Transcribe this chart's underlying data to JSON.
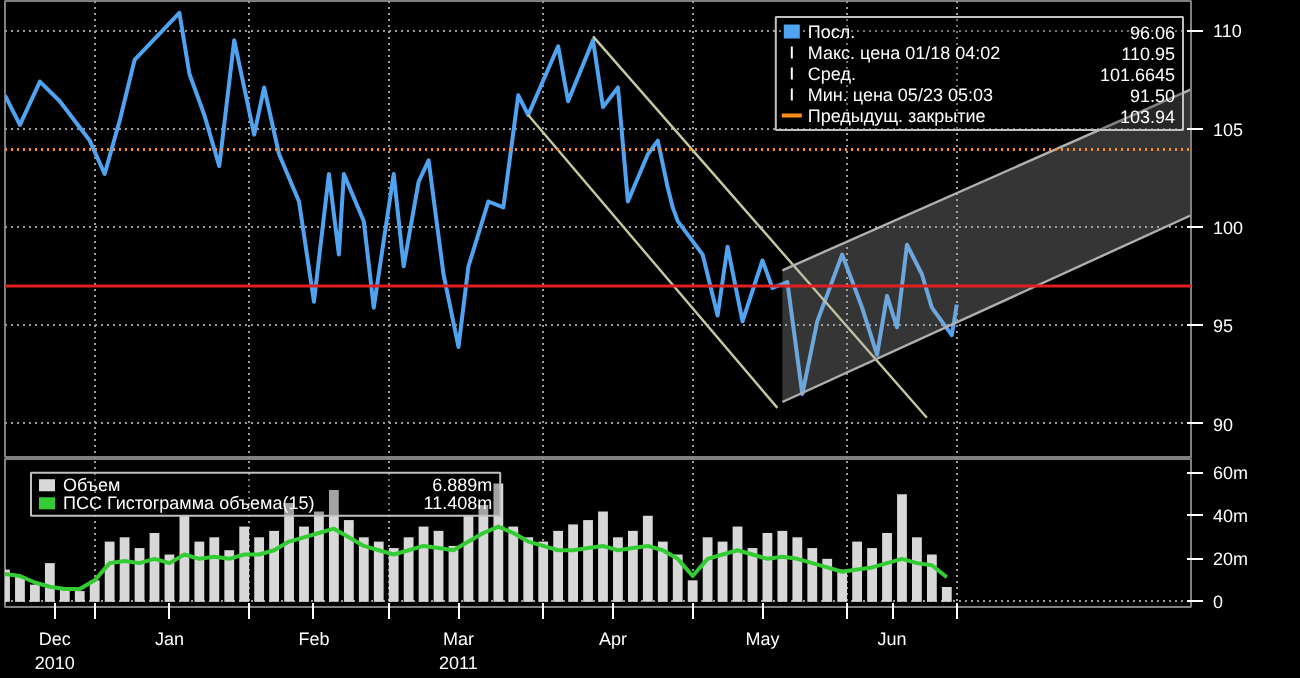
{
  "chart_data": [
    {
      "type": "line",
      "xlim": [
        "2010-12-14",
        "2011-08-09"
      ],
      "ylim": [
        88.2,
        111.5
      ],
      "xticks": [
        {
          "value": "2011-01-01",
          "label": null
        },
        {
          "value": "2011-02-01",
          "label": null
        },
        {
          "value": "2011-03-01",
          "label": null
        },
        {
          "value": "2011-04-01",
          "label": null
        },
        {
          "value": "2011-05-01",
          "label": null
        },
        {
          "value": "2011-06-01",
          "label": null
        },
        {
          "value": "2011-06-23",
          "label": null
        }
      ],
      "yticks": [
        90,
        95,
        100,
        105,
        110
      ],
      "tick_labels": "y",
      "grid": true,
      "legend": "top right",
      "x": [
        "2010-12-14",
        "2010-12-17",
        "2010-12-21",
        "2010-12-25",
        "2010-12-31",
        "2011-01-03",
        "2011-01-06",
        "2011-01-09",
        "2011-01-18",
        "2011-01-20",
        "2011-01-23",
        "2011-01-26",
        "2011-01-29",
        "2011-02-02",
        "2011-02-04",
        "2011-02-07",
        "2011-02-11",
        "2011-02-14",
        "2011-02-17",
        "2011-02-19",
        "2011-02-20",
        "2011-02-24",
        "2011-02-26",
        "2011-03-02",
        "2011-03-04",
        "2011-03-07",
        "2011-03-09",
        "2011-03-12",
        "2011-03-15",
        "2011-03-17",
        "2011-03-21",
        "2011-03-24",
        "2011-03-27",
        "2011-03-29",
        "2011-04-04",
        "2011-04-06",
        "2011-04-11",
        "2011-04-13",
        "2011-04-16",
        "2011-04-18",
        "2011-04-22",
        "2011-04-24",
        "2011-04-26",
        "2011-04-27",
        "2011-04-28",
        "2011-05-03",
        "2011-05-06",
        "2011-05-08",
        "2011-05-11",
        "2011-05-15",
        "2011-05-17",
        "2011-05-20",
        "2011-05-23",
        "2011-05-26",
        "2011-05-31",
        "2011-06-04",
        "2011-06-07",
        "2011-06-09",
        "2011-06-11",
        "2011-06-13",
        "2011-06-16",
        "2011-06-18",
        "2011-06-22",
        "2011-06-23"
      ],
      "series": [
        {
          "name": "Посл.",
          "color": "#4fa3f0",
          "values": [
            106.7,
            105.2,
            107.4,
            106.4,
            104.4,
            102.7,
            105.4,
            108.5,
            110.9,
            107.8,
            105.7,
            103.1,
            109.5,
            104.7,
            107.1,
            103.7,
            101.3,
            96.2,
            102.7,
            98.6,
            102.7,
            100.3,
            95.9,
            102.7,
            98.0,
            102.3,
            103.4,
            97.6,
            93.9,
            98.0,
            101.3,
            101.0,
            106.7,
            105.7,
            109.2,
            106.4,
            109.5,
            106.1,
            107.1,
            101.3,
            103.7,
            104.4,
            102.0,
            101.0,
            100.3,
            98.6,
            95.5,
            99.0,
            95.2,
            98.3,
            96.9,
            97.2,
            91.5,
            95.2,
            98.6,
            95.9,
            93.5,
            96.5,
            94.9,
            99.1,
            97.6,
            95.9,
            94.5,
            96.06
          ]
        },
        {
          "type": "line",
          "color": "#c8c8a0",
          "x": [
            "2011-03-29",
            "2011-05-18"
          ],
          "values": [
            105.7,
            90.8
          ]
        },
        {
          "type": "line",
          "color": "#c8c8a0",
          "x": [
            "2011-04-11",
            "2011-06-17"
          ],
          "values": [
            109.7,
            90.3
          ]
        },
        {
          "type": "line",
          "color": "#b0b0b0",
          "x": [
            "2011-05-19",
            "2011-08-09"
          ],
          "values": [
            97.8,
            107.0
          ],
          "lower": [
            91.1,
            100.6
          ],
          "upper": [
            97.8,
            107.0
          ]
        },
        {
          "type": "line",
          "color": "#b0b0b0",
          "x": [
            "2011-05-19",
            "2011-08-09"
          ],
          "values": [
            91.1,
            100.6
          ]
        }
      ],
      "ref_lines": [
        {
          "axis": "y",
          "value": 103.94,
          "label": "Предыдущ. закрытие 103.94",
          "color": "#ff8c1a",
          "line_style": "dotted"
        },
        {
          "axis": "y",
          "value": 97.0,
          "color": "#e02020",
          "line_style": "solid"
        }
      ],
      "annotations": [
        "96.06",
        "Макс. цена 01/18 04:02 110.95",
        "Сред. 101.6645",
        "Мин. цена 05/23 05:03 91.50"
      ]
    },
    {
      "type": "bar",
      "xlim": [
        "2010-12-14",
        "2011-08-09"
      ],
      "ylim": [
        -2.4,
        66.4
      ],
      "xticks": [
        {
          "value": "2010-12-24",
          "label": "Dec\n2010"
        },
        {
          "value": "2011-01-01",
          "label": null
        },
        {
          "value": "2011-01-16",
          "label": "Jan"
        },
        {
          "value": "2011-02-01",
          "label": null
        },
        {
          "value": "2011-02-14",
          "label": "Feb"
        },
        {
          "value": "2011-03-01",
          "label": null
        },
        {
          "value": "2011-03-15",
          "label": "Mar\n2011"
        },
        {
          "value": "2011-04-01",
          "label": null
        },
        {
          "value": "2011-04-15",
          "label": "Apr"
        },
        {
          "value": "2011-05-01",
          "label": null
        },
        {
          "value": "2011-05-15",
          "label": "May"
        },
        {
          "value": "2011-06-01",
          "label": null
        },
        {
          "value": "2011-06-10",
          "label": "Jun"
        },
        {
          "value": "2011-06-23",
          "label": null
        }
      ],
      "yticks": [
        0,
        {
          "value": 20,
          "label": "20m"
        },
        {
          "value": 40,
          "label": "40m"
        },
        {
          "value": 60,
          "label": "60m"
        }
      ],
      "grid": true,
      "legend": "top left",
      "x": [
        "2010-12-14",
        "2010-12-17",
        "2010-12-20",
        "2010-12-23",
        "2010-12-26",
        "2010-12-29",
        "2011-01-01",
        "2011-01-04",
        "2011-01-07",
        "2011-01-10",
        "2011-01-13",
        "2011-01-16",
        "2011-01-19",
        "2011-01-22",
        "2011-01-25",
        "2011-01-28",
        "2011-01-31",
        "2011-02-03",
        "2011-02-06",
        "2011-02-09",
        "2011-02-12",
        "2011-02-15",
        "2011-02-18",
        "2011-02-21",
        "2011-02-24",
        "2011-02-27",
        "2011-03-02",
        "2011-03-05",
        "2011-03-08",
        "2011-03-11",
        "2011-03-14",
        "2011-03-17",
        "2011-03-20",
        "2011-03-23",
        "2011-03-26",
        "2011-03-29",
        "2011-04-01",
        "2011-04-04",
        "2011-04-07",
        "2011-04-10",
        "2011-04-13",
        "2011-04-16",
        "2011-04-19",
        "2011-04-22",
        "2011-04-25",
        "2011-04-28",
        "2011-05-01",
        "2011-05-04",
        "2011-05-07",
        "2011-05-10",
        "2011-05-13",
        "2011-05-16",
        "2011-05-19",
        "2011-05-22",
        "2011-05-25",
        "2011-05-28",
        "2011-05-31",
        "2011-06-03",
        "2011-06-06",
        "2011-06-09",
        "2011-06-12",
        "2011-06-15",
        "2011-06-18",
        "2011-06-21"
      ],
      "series": [
        {
          "name": "Объем",
          "color": "#d8d8d8",
          "values": [
            15,
            12,
            8,
            18,
            6,
            5,
            10,
            28,
            30,
            25,
            32,
            22,
            40,
            28,
            30,
            24,
            35,
            30,
            33,
            46,
            35,
            42,
            52,
            38,
            30,
            28,
            25,
            30,
            35,
            33,
            26,
            40,
            45,
            55,
            35,
            30,
            28,
            33,
            36,
            38,
            42,
            30,
            33,
            40,
            28,
            22,
            10,
            30,
            28,
            35,
            25,
            32,
            33,
            30,
            25,
            20,
            15,
            28,
            25,
            32,
            50,
            30,
            22,
            6.889
          ]
        },
        {
          "type": "line",
          "name": "ПСС Гистограмма объема(15)",
          "color": "#33cc33",
          "values": [
            13,
            12,
            9,
            7,
            6,
            6,
            10,
            18,
            19,
            18,
            20,
            18,
            22,
            20,
            21,
            20,
            22,
            22,
            24,
            28,
            30,
            32,
            34,
            30,
            26,
            24,
            22,
            24,
            26,
            25,
            24,
            28,
            32,
            35,
            32,
            28,
            26,
            24,
            24,
            25,
            26,
            24,
            25,
            26,
            24,
            20,
            12,
            20,
            22,
            24,
            22,
            20,
            21,
            20,
            18,
            16,
            14,
            15,
            16,
            18,
            20,
            18,
            17,
            11.408
          ]
        }
      ],
      "annotations": [
        "6.889m",
        "11.408m"
      ]
    }
  ]
}
